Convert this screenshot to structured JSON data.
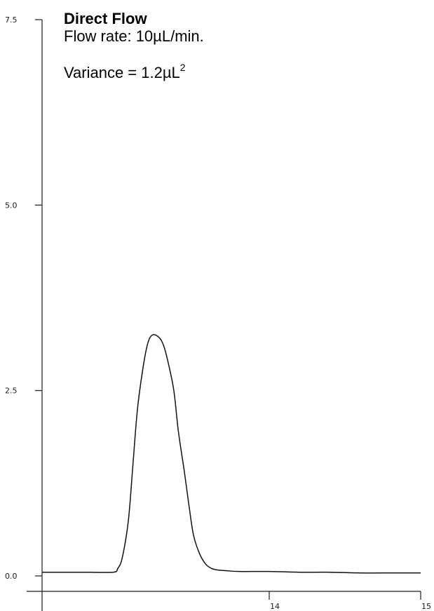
{
  "chart_data": {
    "type": "line",
    "title": "Direct Flow",
    "annotations": {
      "flow_rate": "Flow rate:  10µL/min.",
      "variance_text": "Variance = 1.2µL",
      "variance_exponent": "2"
    },
    "xlabel": "",
    "ylabel": "",
    "xlim": [
      12.5,
      15
    ],
    "ylim": [
      -0.1,
      7.5
    ],
    "yticks": [
      {
        "value": 7.5,
        "label": "7.5"
      },
      {
        "value": 5.0,
        "label": "5.0"
      },
      {
        "value": 2.5,
        "label": "2.5"
      },
      {
        "value": 0.0,
        "label": "0.0"
      }
    ],
    "xticks": [
      {
        "value": 14,
        "label": "14"
      },
      {
        "value": 15,
        "label": "15"
      }
    ],
    "grid": false,
    "series": [
      {
        "color": "#111111",
        "x": [
          12.5,
          12.8,
          12.97,
          13.0,
          13.03,
          13.07,
          13.1,
          13.13,
          13.17,
          13.2,
          13.23,
          13.27,
          13.3,
          13.33,
          13.37,
          13.4,
          13.44,
          13.47,
          13.5,
          13.54,
          13.58,
          13.62,
          13.66,
          13.72,
          13.8,
          14.0,
          14.2,
          14.4,
          14.6,
          14.8,
          15.0
        ],
        "y": [
          0.05,
          0.05,
          0.05,
          0.1,
          0.25,
          0.75,
          1.5,
          2.25,
          2.85,
          3.15,
          3.25,
          3.22,
          3.12,
          2.9,
          2.5,
          1.95,
          1.4,
          0.95,
          0.55,
          0.3,
          0.16,
          0.1,
          0.08,
          0.07,
          0.06,
          0.06,
          0.05,
          0.05,
          0.04,
          0.04,
          0.04
        ]
      }
    ]
  }
}
